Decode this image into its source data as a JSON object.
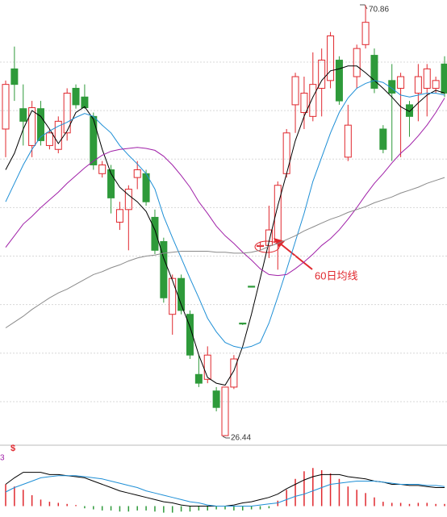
{
  "chart_data": [
    {
      "type": "candlestick",
      "up_color": "#e0282e",
      "down_color": "#2e9a3a",
      "ylim": [
        25.84,
        71.4
      ],
      "yticks": [
        30,
        35,
        40,
        45,
        50,
        55,
        60,
        65
      ],
      "grid": true,
      "ohlc": [
        [
          58.1,
          63.1,
          55.2,
          62.7
        ],
        [
          64.3,
          66.6,
          61.0,
          62.7
        ],
        [
          60.2,
          62.7,
          56.4,
          58.9
        ],
        [
          56.4,
          61.0,
          55.2,
          60.3
        ],
        [
          60.2,
          61.0,
          56.4,
          56.9
        ],
        [
          56.4,
          58.1,
          56.0,
          57.7
        ],
        [
          56.0,
          59.4,
          55.6,
          58.9
        ],
        [
          57.7,
          62.3,
          56.9,
          61.8
        ],
        [
          62.3,
          62.7,
          60.2,
          60.6
        ],
        [
          61.4,
          62.7,
          60.2,
          60.3
        ],
        [
          59.4,
          59.8,
          53.9,
          54.4
        ],
        [
          53.5,
          54.8,
          53.1,
          54.4
        ],
        [
          53.9,
          54.4,
          49.4,
          51.0
        ],
        [
          48.5,
          50.6,
          47.7,
          49.8
        ],
        [
          49.8,
          52.3,
          45.6,
          51.9
        ],
        [
          53.1,
          54.8,
          51.9,
          53.9
        ],
        [
          53.5,
          53.9,
          50.2,
          50.6
        ],
        [
          49.0,
          49.8,
          45.2,
          45.6
        ],
        [
          46.5,
          46.9,
          40.2,
          40.7
        ],
        [
          39.0,
          43.1,
          36.9,
          42.7
        ],
        [
          42.7,
          43.1,
          39.0,
          39.4
        ],
        [
          39.0,
          39.4,
          34.4,
          34.8
        ],
        [
          32.8,
          34.8,
          31.5,
          31.9
        ],
        [
          32.3,
          35.7,
          31.9,
          34.8
        ],
        [
          31.1,
          31.5,
          29.0,
          29.4
        ],
        [
          26.5,
          31.5,
          26.44,
          31.5
        ],
        [
          31.5,
          34.8,
          31.3,
          34.4
        ],
        [
          38.1,
          38.1,
          37.9,
          38.0
        ],
        [
          41.9,
          41.9,
          41.8,
          41.8
        ],
        [
          46.0,
          46.5,
          45.6,
          46.1
        ],
        [
          46.1,
          50.2,
          44.8,
          47.7
        ],
        [
          46.5,
          52.7,
          43.6,
          52.3
        ],
        [
          53.5,
          58.1,
          53.1,
          57.7
        ],
        [
          60.6,
          63.9,
          57.7,
          63.5
        ],
        [
          59.8,
          63.5,
          58.1,
          61.8
        ],
        [
          59.4,
          66.0,
          58.9,
          62.7
        ],
        [
          62.3,
          66.4,
          59.4,
          65.2
        ],
        [
          63.1,
          68.1,
          62.3,
          67.7
        ],
        [
          65.2,
          65.6,
          60.6,
          61.0
        ],
        [
          55.2,
          60.6,
          54.8,
          58.5
        ],
        [
          63.5,
          66.8,
          62.3,
          66.4
        ],
        [
          66.8,
          70.86,
          66.4,
          69.1
        ],
        [
          65.7,
          66.4,
          61.8,
          62.3
        ],
        [
          58.1,
          58.5,
          55.6,
          56.0
        ],
        [
          63.1,
          64.8,
          54.8,
          61.8
        ],
        [
          62.3,
          63.9,
          55.2,
          63.5
        ],
        [
          60.6,
          61.0,
          57.3,
          59.4
        ],
        [
          61.8,
          64.8,
          58.9,
          63.5
        ],
        [
          62.3,
          64.8,
          59.4,
          64.3
        ],
        [
          62.3,
          63.5,
          61.8,
          63.1
        ],
        [
          64.8,
          65.6,
          61.4,
          61.8
        ]
      ],
      "series": [
        {
          "color": "#000000",
          "values": [
            53.9,
            55.6,
            58.1,
            60.0,
            59.4,
            58.1,
            56.6,
            57.9,
            59.8,
            60.4,
            59.1,
            56.0,
            53.5,
            52.1,
            51.3,
            50.6,
            49.6,
            47.7,
            44.8,
            42.5,
            40.0,
            37.7,
            34.8,
            32.5,
            31.9,
            31.7,
            33.2,
            35.7,
            39.0,
            42.7,
            46.5,
            50.2,
            53.5,
            56.9,
            59.4,
            61.4,
            63.1,
            64.1,
            64.3,
            64.6,
            64.6,
            63.9,
            63.1,
            62.3,
            61.4,
            60.4,
            59.9,
            60.8,
            61.6,
            62.1,
            61.8
          ]
        },
        {
          "color": "#1e8fd6",
          "values": [
            50.6,
            52.5,
            54.4,
            56.0,
            57.3,
            57.9,
            58.4,
            58.8,
            59.3,
            59.7,
            59.4,
            58.5,
            57.7,
            56.4,
            55.4,
            54.5,
            53.5,
            51.9,
            49.1,
            46.9,
            44.8,
            42.7,
            40.7,
            38.6,
            37.2,
            36.1,
            35.7,
            35.5,
            35.7,
            36.1,
            38.1,
            40.8,
            43.6,
            46.5,
            49.4,
            52.7,
            55.2,
            57.7,
            59.8,
            61.3,
            62.3,
            62.8,
            63.1,
            62.9,
            62.3,
            61.6,
            61.4,
            61.6,
            61.8,
            61.8,
            61.6
          ]
        },
        {
          "color": "#a020a8",
          "values": [
            45.9,
            47.1,
            48.3,
            49.1,
            50.0,
            50.8,
            51.6,
            52.5,
            53.3,
            54.1,
            54.8,
            55.4,
            55.8,
            56.0,
            56.1,
            56.2,
            56.1,
            55.9,
            55.3,
            54.4,
            53.3,
            52.1,
            50.6,
            49.4,
            48.1,
            47.1,
            46.3,
            45.4,
            44.6,
            43.7,
            43.1,
            43.0,
            43.1,
            43.7,
            44.4,
            45.2,
            46.1,
            46.8,
            47.7,
            48.8,
            50.0,
            51.3,
            52.5,
            53.5,
            54.6,
            55.6,
            56.4,
            57.4,
            58.5,
            59.8,
            61.3
          ]
        },
        {
          "color": "#8a8a8a",
          "values": [
            37.6,
            38.2,
            38.8,
            39.5,
            40.1,
            40.7,
            41.2,
            41.6,
            42.1,
            42.6,
            43.1,
            43.4,
            43.8,
            44.1,
            44.5,
            44.8,
            45.0,
            45.1,
            45.3,
            45.4,
            45.5,
            45.5,
            45.5,
            45.5,
            45.4,
            45.4,
            45.3,
            45.3,
            45.4,
            45.6,
            46.0,
            46.3,
            46.7,
            47.1,
            47.6,
            48.0,
            48.4,
            48.8,
            49.1,
            49.5,
            49.8,
            50.1,
            50.5,
            50.8,
            51.1,
            51.5,
            51.8,
            52.1,
            52.5,
            52.8,
            53.1
          ]
        }
      ],
      "annotations": [
        "70.86",
        "26.44",
        "60日均线"
      ]
    },
    {
      "type": "macd",
      "ylim": [
        -1,
        5
      ],
      "marker": "$",
      "label": "3",
      "up_color": "#e0282e",
      "down_color": "#2e9a3a",
      "histogram": [
        2.0,
        1.8,
        1.5,
        1.0,
        0.6,
        0.4,
        0.3,
        0.2,
        0.1,
        -0.2,
        -0.3,
        -0.4,
        -0.4,
        -0.5,
        -0.5,
        -0.4,
        -0.4,
        -0.5,
        -0.6,
        -0.6,
        -0.5,
        -0.5,
        -0.4,
        -0.4,
        -0.3,
        -0.3,
        -0.4,
        -0.4,
        -0.3,
        -0.3,
        -0.2,
        0.5,
        1.5,
        2.5,
        3.2,
        3.5,
        3.3,
        3.0,
        2.5,
        1.8,
        1.5,
        1.2,
        0.8,
        0.4,
        0.3,
        0.3,
        0.2,
        0.3,
        0.3,
        0.2,
        0.2
      ],
      "series": [
        {
          "color": "#000000",
          "values": [
            2.0,
            2.6,
            3.1,
            3.1,
            3.1,
            2.9,
            2.9,
            2.8,
            2.7,
            2.6,
            2.3,
            2.0,
            1.7,
            1.4,
            1.2,
            1.0,
            0.8,
            0.6,
            0.4,
            0.3,
            0.1,
            0.0,
            0.0,
            0.0,
            0.0,
            0.0,
            0.1,
            0.3,
            0.4,
            0.6,
            0.8,
            1.1,
            1.6,
            2.0,
            2.4,
            2.7,
            2.9,
            2.9,
            2.9,
            2.7,
            2.6,
            2.5,
            2.3,
            2.2,
            2.0,
            2.0,
            1.9,
            1.9,
            1.8,
            1.7,
            1.7
          ]
        },
        {
          "color": "#1e8fd6",
          "values": [
            1.3,
            1.7,
            2.0,
            2.3,
            2.6,
            2.7,
            2.8,
            2.8,
            2.8,
            2.7,
            2.6,
            2.5,
            2.3,
            2.1,
            1.9,
            1.7,
            1.4,
            1.2,
            1.0,
            0.8,
            0.6,
            0.4,
            0.3,
            0.1,
            0.0,
            0.0,
            0.0,
            0.0,
            0.0,
            0.1,
            0.2,
            0.3,
            0.6,
            0.9,
            1.1,
            1.4,
            1.7,
            2.0,
            2.1,
            2.2,
            2.3,
            2.3,
            2.3,
            2.2,
            2.1,
            2.0,
            2.0,
            2.0,
            1.9,
            1.9,
            1.8
          ]
        }
      ]
    }
  ]
}
